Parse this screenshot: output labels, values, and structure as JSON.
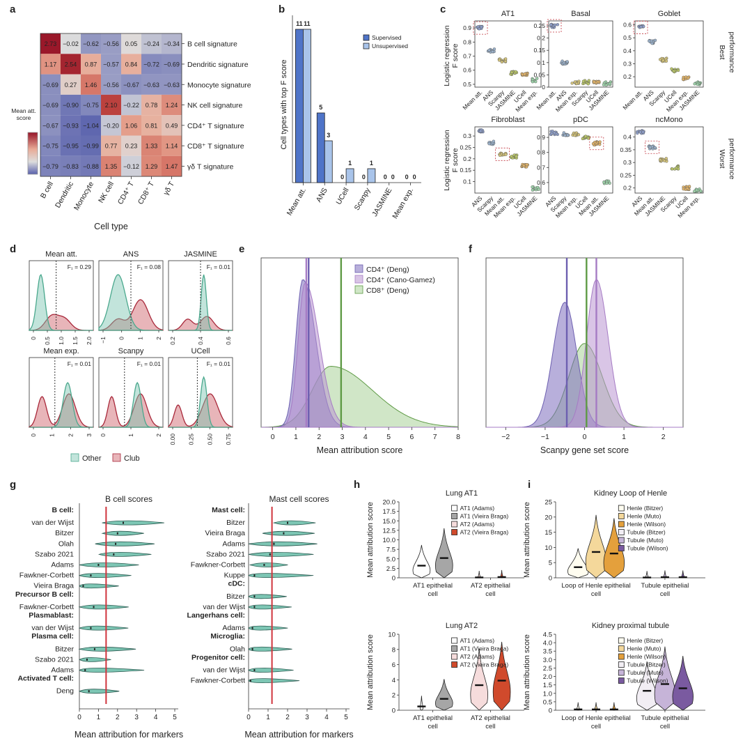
{
  "panel_labels": {
    "a": "a",
    "b": "b",
    "c": "c",
    "d": "d",
    "e": "e",
    "f": "f",
    "g": "g",
    "h": "h",
    "i": "i"
  },
  "chart_data": [
    {
      "id": "a",
      "type": "heatmap",
      "xlabel": "Cell type",
      "x": [
        "B cell",
        "Dendritic",
        "Monocyte",
        "NK cell",
        "CD4⁺ T",
        "CD8⁺ T",
        "γδ T"
      ],
      "y": [
        "B cell signature",
        "Dendritic signature",
        "Monocyte signature",
        "NK cell signature",
        "CD4⁺ T signature",
        "CD8⁺ T signature",
        "γδ T signature"
      ],
      "values": [
        [
          2.73,
          -0.02,
          -0.62,
          -0.56,
          0.05,
          -0.24,
          -0.34
        ],
        [
          1.17,
          2.54,
          0.87,
          -0.57,
          0.84,
          -0.72,
          -0.69
        ],
        [
          -0.69,
          0.27,
          1.46,
          -0.56,
          -0.67,
          -0.63,
          -0.63
        ],
        [
          -0.69,
          -0.9,
          -0.75,
          2.1,
          -0.22,
          0.78,
          1.24
        ],
        [
          -0.67,
          -0.93,
          -1.04,
          -0.2,
          1.06,
          0.81,
          0.49
        ],
        [
          -0.75,
          -0.95,
          -0.99,
          0.77,
          0.23,
          1.33,
          1.14
        ],
        [
          -0.79,
          -0.83,
          -0.88,
          1.35,
          -0.12,
          1.29,
          1.47
        ]
      ],
      "colorbar_label": "Mean att. score"
    },
    {
      "id": "b",
      "type": "bar",
      "ylabel": "Cell types with top F score",
      "categories": [
        "Mean att.",
        "ANS",
        "UCell",
        "Scanpy",
        "JASMINE",
        "Mean exp."
      ],
      "series": [
        {
          "name": "Supervised",
          "values": [
            11,
            5,
            0,
            0,
            0,
            0
          ],
          "color": "#4f74c8"
        },
        {
          "name": "Unsupervised",
          "values": [
            11,
            3,
            1,
            1,
            0,
            0
          ],
          "color": "#a9c4ea"
        }
      ],
      "ylim": [
        0,
        12
      ]
    },
    {
      "id": "c",
      "type": "scatter",
      "ylabel_top": "Logistic regression F score",
      "ylabel_bottom": "Logistic regression F score",
      "side_top": "Best performance",
      "side_bottom": "Worst performance",
      "subplots": [
        {
          "title": "AT1",
          "methods": [
            "Mean att.",
            "ANS",
            "Scanpy",
            "JASMINE",
            "UCell",
            "Mean exp."
          ],
          "means": [
            0.9,
            0.74,
            0.67,
            0.58,
            0.57,
            0.53
          ],
          "ticks": [
            0.5,
            0.6,
            0.7,
            0.8,
            0.9
          ],
          "ylim": [
            0.48,
            0.95
          ],
          "highlight": 0
        },
        {
          "title": "Basal",
          "methods": [
            "Mean att.",
            "ANS",
            "Mean exp.",
            "Scanpy",
            "UCell",
            "JASMINE"
          ],
          "means": [
            0.25,
            0.1,
            0.02,
            0.02,
            0.02,
            0.015
          ],
          "ticks": [
            0,
            0.05,
            0.1,
            0.15,
            0.2,
            0.25
          ],
          "ylim": [
            0,
            0.27
          ],
          "highlight": 0
        },
        {
          "title": "Goblet",
          "methods": [
            "Mean att.",
            "ANS",
            "Scanpy",
            "UCell",
            "Mean exp.",
            "JASMINE"
          ],
          "means": [
            0.58,
            0.47,
            0.33,
            0.25,
            0.19,
            0.15
          ],
          "ticks": [
            0.2,
            0.3,
            0.4,
            0.5,
            0.6
          ],
          "ylim": [
            0.12,
            0.63
          ],
          "highlight": 0
        },
        {
          "title": "Fibroblast",
          "methods": [
            "ANS",
            "Scanpy",
            "Mean att.",
            "Mean exp.",
            "UCell",
            "JASMINE"
          ],
          "means": [
            0.32,
            0.27,
            0.22,
            0.21,
            0.17,
            0.07
          ],
          "ticks": [
            0.1,
            0.15,
            0.2,
            0.25,
            0.3
          ],
          "ylim": [
            0.05,
            0.34
          ],
          "highlight": 2
        },
        {
          "title": "pDC",
          "methods": [
            "ANS",
            "Scanpy",
            "Mean exp.",
            "UCell",
            "Mean att.",
            "JASMINE"
          ],
          "means": [
            0.93,
            0.92,
            0.92,
            0.9,
            0.86,
            0.6
          ],
          "ticks": [
            0.6,
            0.7,
            0.8,
            0.9
          ],
          "ylim": [
            0.53,
            0.97
          ],
          "highlight": 4
        },
        {
          "title": "ncMono",
          "methods": [
            "ANS",
            "Mean att.",
            "JASMINE",
            "Scanpy",
            "UCell",
            "Mean exp."
          ],
          "means": [
            0.42,
            0.36,
            0.31,
            0.28,
            0.2,
            0.19
          ],
          "ticks": [
            0.2,
            0.25,
            0.3,
            0.35,
            0.4
          ],
          "ylim": [
            0.18,
            0.44
          ],
          "highlight": 1
        }
      ]
    },
    {
      "id": "d",
      "type": "area",
      "legend": [
        "Other",
        "Club"
      ],
      "subplots": [
        {
          "title": "Mean att.",
          "f1": "F₁ = 0.29",
          "ticks": [
            "0",
            "0.5",
            "1.0",
            "1.5",
            "2.0"
          ]
        },
        {
          "title": "ANS",
          "f1": "F₁ = 0.08",
          "ticks": [
            "−1",
            "0",
            "1",
            "2"
          ]
        },
        {
          "title": "JASMINE",
          "f1": "F₁ = 0.01",
          "ticks": [
            "0.2",
            "0.4",
            "0.6"
          ]
        },
        {
          "title": "Mean exp.",
          "f1": "F₁ = 0.01",
          "ticks": [
            "0",
            "1",
            "2",
            "3"
          ]
        },
        {
          "title": "Scanpy",
          "f1": "F₁ = 0.01",
          "ticks": [
            "0",
            "1",
            "2"
          ]
        },
        {
          "title": "UCell",
          "f1": "F₁ = 0.01",
          "ticks": [
            "0.00",
            "0.25",
            "0.50",
            "0.75"
          ]
        }
      ]
    },
    {
      "id": "e",
      "type": "area",
      "xlabel": "Mean attribution score",
      "xlim": [
        -0.5,
        8
      ],
      "xticks": [
        "0",
        "1",
        "2",
        "3",
        "4",
        "5",
        "6",
        "7",
        "8"
      ],
      "series": [
        {
          "name": "CD4⁺ (Deng)",
          "color": "#6d5fb0",
          "mean": 1.55
        },
        {
          "name": "CD4⁺ (Cano-Gamez)",
          "color": "#a57bc4",
          "mean": 1.45
        },
        {
          "name": "CD8⁺ (Deng)",
          "color": "#5e9a45",
          "mean": 2.95
        }
      ]
    },
    {
      "id": "f",
      "type": "area",
      "xlabel": "Scanpy gene set score",
      "xlim": [
        -2.5,
        2.5
      ],
      "xticks": [
        "−2",
        "−1",
        "0",
        "1",
        "2"
      ],
      "series": [
        {
          "name": "CD4⁺ (Deng)",
          "color": "#6d5fb0",
          "mean": -0.45
        },
        {
          "name": "CD4⁺ (Cano-Gamez)",
          "color": "#a57bc4",
          "mean": 0.3
        },
        {
          "name": "CD8⁺ (Deng)",
          "color": "#5e9a45",
          "mean": 0.05
        }
      ]
    },
    {
      "id": "g",
      "type": "violin",
      "xlabel": "Mean attribution for markers",
      "subplots": [
        {
          "title": "B cell scores",
          "threshold": 1.4,
          "groups": [
            {
              "header": "B cell:",
              "rows": [
                [
                  "van der Wijst",
                  2.3
                ],
                [
                  "Bitzer",
                  2.0
                ],
                [
                  "Olah",
                  1.9
                ],
                [
                  "Szabo 2021",
                  1.8
                ],
                [
                  "Adams",
                  1.0
                ],
                [
                  "Fawkner-Corbett",
                  0.6
                ],
                [
                  "Vieira Braga",
                  0.2
                ]
              ]
            },
            {
              "header": "Precursor B cell:",
              "rows": [
                [
                  "Fawkner-Corbett",
                  0.75
                ]
              ]
            },
            {
              "header": "Plasmablast:",
              "rows": [
                [
                  "van der Wijst",
                  0.6
                ]
              ]
            },
            {
              "header": "Plasma cell:",
              "rows": [
                [
                  "Bitzer",
                  0.8
                ],
                [
                  "Szabo 2021",
                  0.4
                ],
                [
                  "Adams",
                  0.3
                ]
              ]
            },
            {
              "header": "Activated T cell:",
              "rows": [
                [
                  "Deng",
                  0.5
                ]
              ]
            }
          ]
        },
        {
          "title": "Mast cell scores",
          "threshold": 1.2,
          "groups": [
            {
              "header": "Mast cell:",
              "rows": [
                [
                  "Bitzer",
                  2.0
                ],
                [
                  "Vieira Braga",
                  1.8
                ],
                [
                  "Adams",
                  1.3
                ],
                [
                  "Szabo 2021",
                  1.1
                ],
                [
                  "Fawkner-Corbett",
                  0.8
                ],
                [
                  "Kuppe",
                  0.3
                ]
              ]
            },
            {
              "header": "cDC:",
              "rows": [
                [
                  "Bitzer",
                  0.3
                ],
                [
                  "van der Wijst",
                  0.3
                ]
              ]
            },
            {
              "header": "Langerhans cell:",
              "rows": [
                [
                  "Adams",
                  0.2
                ]
              ]
            },
            {
              "header": "Microglia:",
              "rows": [
                [
                  "Olah",
                  0.2
                ]
              ]
            },
            {
              "header": "Progenitor cell:",
              "rows": [
                [
                  "van der Wijst",
                  0.3
                ],
                [
                  "Fawkner-Corbett",
                  0.1
                ]
              ]
            }
          ]
        }
      ],
      "xticks": [
        "0",
        "1",
        "2",
        "3",
        "4",
        "5"
      ]
    },
    {
      "id": "h",
      "type": "violin",
      "ylabel": "Mean attribution score",
      "subplots": [
        {
          "title": "Lung AT1",
          "yticks": [
            "0",
            "2.5",
            "5.0",
            "7.5",
            "10.0",
            "12.5",
            "15.0",
            "17.5",
            "20.0"
          ],
          "ymax": 20,
          "legend": [
            "AT1 (Adams)",
            "AT1 (Vieira Braga)",
            "AT2 (Adams)",
            "AT2 (Vieira Braga)"
          ],
          "groups": [
            "AT1 epithelial cell",
            "AT2 epithelial cell"
          ],
          "medians": [
            3.2,
            5.2,
            0.1,
            0.2
          ]
        },
        {
          "title": "Lung AT2",
          "yticks": [
            "0",
            "2",
            "4",
            "6",
            "8",
            "10"
          ],
          "ymax": 10,
          "legend": [
            "AT1 (Adams)",
            "AT1 (Vieira Braga)",
            "AT2 (Adams)",
            "AT2 (Vieira Braga)"
          ],
          "groups": [
            "AT1 epithelial cell",
            "AT2 epithelial cell"
          ],
          "medians": [
            0.5,
            1.5,
            3.3,
            3.9
          ]
        }
      ]
    },
    {
      "id": "i",
      "type": "violin",
      "ylabel": "Mean attribution score",
      "subplots": [
        {
          "title": "Kidney Loop of Henle",
          "yticks": [
            "0",
            "5",
            "10",
            "15",
            "20",
            "25"
          ],
          "ymax": 25,
          "legend": [
            "Henle (Bitzer)",
            "Henle (Muto)",
            "Henle (Wilson)",
            "Tubule (Bitzer)",
            "Tubule (Muto)",
            "Tubule (Wilson)"
          ],
          "groups": [
            "Loop of Henle epithelial cell",
            "Tubule epithelial cell"
          ],
          "medians": [
            3.5,
            8.5,
            8.0,
            0.1,
            0.2,
            0.2
          ]
        },
        {
          "title": "Kidney proximal tubule",
          "yticks": [
            "0",
            "0.5",
            "1.0",
            "1.5",
            "2.0",
            "2.5",
            "3.0",
            "3.5",
            "4.0",
            "4.5"
          ],
          "ymax": 4.5,
          "legend": [
            "Henle (Bitzer)",
            "Henle (Muto)",
            "Henle (Wilson)",
            "Tubule (Bitzer)",
            "Tubule (Muto)",
            "Tubule (Wilson)"
          ],
          "groups": [
            "Loop of Henle epithelial cell",
            "Tubule epithelial cell"
          ],
          "medians": [
            0.05,
            0.05,
            0.05,
            1.15,
            1.55,
            1.3
          ]
        }
      ]
    }
  ]
}
